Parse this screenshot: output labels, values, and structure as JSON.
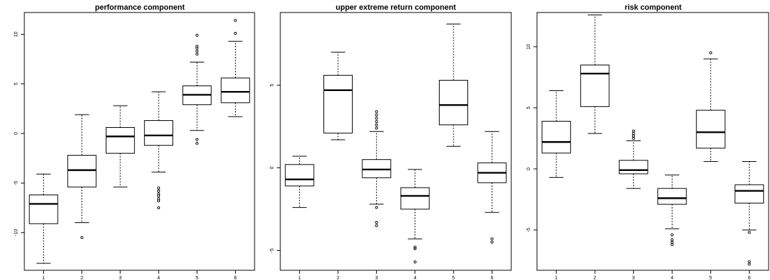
{
  "chart_data": [
    {
      "type": "boxplot",
      "title": "performance component",
      "categories": [
        "1",
        "2",
        "3",
        "4",
        "5",
        "6"
      ],
      "y_ticks": [
        -10,
        -5,
        0,
        5,
        10
      ],
      "y_tick_labels": [
        "-10",
        "-5",
        "0",
        "5",
        "10"
      ],
      "ylim": [
        -13.8,
        12.2
      ],
      "boxes": [
        {
          "whisker_low": -13.1,
          "q1": -9.1,
          "median": -7.1,
          "q3": -6.2,
          "whisker_high": -4.1,
          "outliers": []
        },
        {
          "whisker_low": -9.0,
          "q1": -5.4,
          "median": -3.7,
          "q3": -2.2,
          "whisker_high": 1.9,
          "outliers": [
            -10.5
          ]
        },
        {
          "whisker_low": -5.4,
          "q1": -2.0,
          "median": -0.3,
          "q3": 0.6,
          "whisker_high": 2.8,
          "outliers": []
        },
        {
          "whisker_low": -3.9,
          "q1": -1.2,
          "median": -0.2,
          "q3": 1.3,
          "whisker_high": 4.2,
          "outliers": [
            -5.5,
            -5.8,
            -6.1,
            -6.3,
            -6.6,
            -6.8,
            -7.5
          ]
        },
        {
          "whisker_low": 0.3,
          "q1": 2.9,
          "median": 3.9,
          "q3": 4.8,
          "whisker_high": 7.2,
          "outliers": [
            -0.6,
            -1.0,
            8.0,
            8.3,
            8.6,
            8.8,
            9.9
          ]
        },
        {
          "whisker_low": 1.7,
          "q1": 3.1,
          "median": 4.2,
          "q3": 5.6,
          "whisker_high": 9.3,
          "outliers": [
            10.1,
            11.4
          ]
        }
      ]
    },
    {
      "type": "boxplot",
      "title": "upper extreme return component",
      "categories": [
        "1",
        "2",
        "3",
        "4",
        "5",
        "6"
      ],
      "y_ticks": [
        -5,
        0,
        5
      ],
      "y_tick_labels": [
        "-5",
        "0",
        "5"
      ],
      "ylim": [
        -6.2,
        9.4
      ],
      "boxes": [
        {
          "whisker_low": -2.4,
          "q1": -1.1,
          "median": -0.7,
          "q3": 0.2,
          "whisker_high": 0.7,
          "outliers": []
        },
        {
          "whisker_low": 1.7,
          "q1": 2.1,
          "median": 4.7,
          "q3": 5.6,
          "whisker_high": 7.0,
          "outliers": []
        },
        {
          "whisker_low": -2.2,
          "q1": -0.6,
          "median": -0.1,
          "q3": 0.5,
          "whisker_high": 2.2,
          "outliers": [
            -2.4,
            -3.3,
            -3.5,
            2.4,
            2.6,
            2.8,
            3.0,
            3.2,
            3.4
          ]
        },
        {
          "whisker_low": -4.3,
          "q1": -2.5,
          "median": -1.7,
          "q3": -1.2,
          "whisker_high": -0.1,
          "outliers": [
            -4.8,
            -4.9,
            -5.7
          ]
        },
        {
          "whisker_low": 1.3,
          "q1": 2.6,
          "median": 3.8,
          "q3": 5.3,
          "whisker_high": 8.7,
          "outliers": []
        },
        {
          "whisker_low": -2.7,
          "q1": -0.9,
          "median": -0.3,
          "q3": 0.3,
          "whisker_high": 2.2,
          "outliers": [
            -4.3,
            -4.5
          ]
        }
      ]
    },
    {
      "type": "boxplot",
      "title": "risk component",
      "categories": [
        "1",
        "2",
        "3",
        "4",
        "5",
        "6"
      ],
      "y_ticks": [
        -5,
        0,
        5,
        10
      ],
      "y_tick_labels": [
        "-5",
        "0",
        "5",
        "10"
      ],
      "ylim": [
        -8.3,
        12.8
      ],
      "boxes": [
        {
          "whisker_low": -0.7,
          "q1": 1.3,
          "median": 2.2,
          "q3": 3.9,
          "whisker_high": 6.4,
          "outliers": []
        },
        {
          "whisker_low": 2.9,
          "q1": 5.1,
          "median": 7.8,
          "q3": 8.5,
          "whisker_high": 12.6,
          "outliers": []
        },
        {
          "whisker_low": -1.6,
          "q1": -0.4,
          "median": -0.1,
          "q3": 0.7,
          "whisker_high": 2.3,
          "outliers": [
            2.5,
            2.7,
            2.9,
            3.1
          ]
        },
        {
          "whisker_low": -4.9,
          "q1": -2.9,
          "median": -2.4,
          "q3": -1.6,
          "whisker_high": -0.5,
          "outliers": [
            -5.4,
            -5.8,
            -6.0,
            -6.2
          ]
        },
        {
          "whisker_low": 0.6,
          "q1": 1.7,
          "median": 3.0,
          "q3": 4.8,
          "whisker_high": 9.0,
          "outliers": [
            9.5
          ]
        },
        {
          "whisker_low": -5.0,
          "q1": -2.8,
          "median": -1.8,
          "q3": -1.3,
          "whisker_high": 0.6,
          "outliers": [
            -5.2,
            -7.6,
            -7.8
          ]
        }
      ]
    }
  ]
}
